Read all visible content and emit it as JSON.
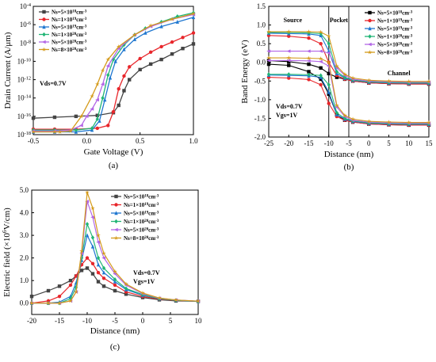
{
  "chart_data": [
    {
      "id": "a",
      "type": "line",
      "panel_label": "(a)",
      "xlabel": "Gate Voltage (V)",
      "ylabel": "Drain Current (A/μm)",
      "xlim": [
        -0.5,
        1.0
      ],
      "ylim_log10": [
        -18,
        -4
      ],
      "y_scale": "log",
      "xticks": [
        "-0.5",
        "0.0",
        "0.5",
        "1.0"
      ],
      "yticks": [
        {
          "mant": "10",
          "exp": "-4",
          "v": -4
        },
        {
          "mant": "10",
          "exp": "-6",
          "v": -6
        },
        {
          "mant": "10",
          "exp": "-8",
          "v": -8
        },
        {
          "mant": "10",
          "exp": "-10",
          "v": -10
        },
        {
          "mant": "10",
          "exp": "-12",
          "v": -12
        },
        {
          "mant": "10",
          "exp": "-14",
          "v": -14
        },
        {
          "mant": "10",
          "exp": "-16",
          "v": -16
        },
        {
          "mant": "10",
          "exp": "-18",
          "v": -18
        }
      ],
      "annotation": "Vds=0.7V",
      "legend_position": "top-left",
      "series": [
        {
          "name": "Ns=5×10¹⁸cm⁻³",
          "color": "#444444",
          "marker": "square",
          "x": [
            -0.5,
            -0.3,
            -0.1,
            0.1,
            0.25,
            0.3,
            0.35,
            0.4,
            0.5,
            0.6,
            0.7,
            0.8,
            0.9,
            1.0
          ],
          "log10y": [
            -16.2,
            -16.1,
            -16.0,
            -15.9,
            -15.6,
            -14.8,
            -13.2,
            -12.0,
            -10.9,
            -10.3,
            -9.8,
            -9.2,
            -8.6,
            -8.1
          ]
        },
        {
          "name": "Ns=1×10¹⁹cm⁻³",
          "color": "#e8262b",
          "marker": "circle",
          "x": [
            -0.5,
            -0.3,
            -0.1,
            0.1,
            0.2,
            0.25,
            0.3,
            0.35,
            0.4,
            0.5,
            0.6,
            0.7,
            0.8,
            0.9,
            1.0
          ],
          "log10y": [
            -17.4,
            -17.4,
            -17.4,
            -17.3,
            -17.0,
            -15.5,
            -13.0,
            -11.6,
            -10.6,
            -9.7,
            -9.0,
            -8.4,
            -7.9,
            -7.4,
            -6.9
          ]
        },
        {
          "name": "Ns=5×10¹⁹cm⁻³",
          "color": "#1f77d0",
          "marker": "triangle",
          "x": [
            -0.5,
            -0.3,
            -0.1,
            0.05,
            0.12,
            0.17,
            0.22,
            0.27,
            0.35,
            0.45,
            0.55,
            0.7,
            0.85,
            1.0
          ],
          "log10y": [
            -17.7,
            -17.7,
            -17.7,
            -17.5,
            -16.5,
            -14.2,
            -11.8,
            -10.0,
            -8.7,
            -7.6,
            -6.9,
            -6.2,
            -5.7,
            -5.2
          ]
        },
        {
          "name": "Ns=1×10²⁰cm⁻³",
          "color": "#21b575",
          "marker": "diamond",
          "x": [
            -0.5,
            -0.3,
            -0.1,
            0.05,
            0.1,
            0.15,
            0.2,
            0.25,
            0.35,
            0.45,
            0.55,
            0.7,
            0.85,
            1.0
          ],
          "log10y": [
            -17.5,
            -17.5,
            -17.5,
            -17.3,
            -16.3,
            -14.0,
            -11.5,
            -9.8,
            -8.2,
            -7.1,
            -6.4,
            -5.7,
            -5.1,
            -4.7
          ]
        },
        {
          "name": "Ns=5×10²⁰cm⁻³",
          "color": "#b266e6",
          "marker": "triangle-left",
          "x": [
            -0.5,
            -0.3,
            -0.15,
            -0.05,
            0.0,
            0.05,
            0.1,
            0.15,
            0.2,
            0.3,
            0.45,
            0.6,
            0.8,
            1.0
          ],
          "log10y": [
            -17.6,
            -17.6,
            -17.5,
            -17.0,
            -16.0,
            -15.2,
            -14.2,
            -12.5,
            -10.5,
            -8.6,
            -7.1,
            -6.2,
            -5.4,
            -4.9
          ]
        },
        {
          "name": "Ns=8×10²⁰cm⁻³",
          "color": "#d49a1a",
          "marker": "star",
          "x": [
            -0.5,
            -0.3,
            -0.25,
            -0.15,
            -0.05,
            0.05,
            0.1,
            0.15,
            0.2,
            0.3,
            0.45,
            0.6,
            0.8,
            1.0
          ],
          "log10y": [
            -17.7,
            -17.7,
            -17.7,
            -17.6,
            -16.0,
            -13.8,
            -12.5,
            -11.0,
            -9.8,
            -8.4,
            -7.1,
            -6.1,
            -5.4,
            -4.8
          ]
        }
      ]
    },
    {
      "id": "b",
      "type": "line",
      "panel_label": "(b)",
      "xlabel": "Distance (nm)",
      "ylabel": "Band Energy (eV)",
      "xlim": [
        -25,
        15
      ],
      "ylim": [
        -2.0,
        1.5
      ],
      "xticks": [
        "-25",
        "-20",
        "-15",
        "-10",
        "-5",
        "0",
        "5",
        "10",
        "15"
      ],
      "yticks": [
        "1.5",
        "1.0",
        "0.5",
        "0.0",
        "-0.5",
        "-1.0",
        "-1.5",
        "-2.0"
      ],
      "region_labels": [
        "Source",
        "Pocket",
        "Channel"
      ],
      "region_boundaries_x": [
        -10,
        -5
      ],
      "annotations": [
        "Vds=0.7V",
        "Vgs=1V"
      ],
      "legend_position": "top-right",
      "series": [
        {
          "name": "Ns=5×10¹⁸cm⁻³",
          "color": "#000000",
          "marker": "square",
          "cb": {
            "x": [
              -25,
              -20,
              -15,
              -12,
              -10,
              -8,
              -6,
              -4,
              0,
              5,
              10,
              15
            ],
            "y": [
              0.05,
              0.02,
              -0.05,
              -0.15,
              -0.3,
              -0.4,
              -0.45,
              -0.5,
              -0.55,
              -0.57,
              -0.58,
              -0.58
            ]
          },
          "vb": {
            "x": [
              -25,
              -20,
              -15,
              -12,
              -10,
              -8,
              -6,
              -4,
              0,
              5,
              10,
              15
            ],
            "y": [
              -0.05,
              -0.08,
              -0.25,
              -0.45,
              -0.85,
              -1.4,
              -1.55,
              -1.6,
              -1.65,
              -1.67,
              -1.68,
              -1.68
            ]
          }
        },
        {
          "name": "Ns=1×10¹⁹cm⁻³",
          "color": "#e8262b",
          "marker": "circle",
          "cb": {
            "x": [
              -25,
              -20,
              -15,
              -12,
              -10,
              -8,
              -6,
              -4,
              0,
              5,
              10,
              15
            ],
            "y": [
              0.72,
              0.7,
              0.65,
              0.5,
              0.0,
              -0.35,
              -0.45,
              -0.5,
              -0.55,
              -0.57,
              -0.58,
              -0.58
            ]
          },
          "vb": {
            "x": [
              -25,
              -20,
              -15,
              -12,
              -10,
              -8,
              -6,
              -4,
              0,
              5,
              10,
              15
            ],
            "y": [
              -0.4,
              -0.42,
              -0.46,
              -0.6,
              -1.1,
              -1.45,
              -1.55,
              -1.6,
              -1.65,
              -1.67,
              -1.68,
              -1.68
            ]
          }
        },
        {
          "name": "Ns=5×10¹⁹cm⁻³",
          "color": "#1f77d0",
          "marker": "triangle",
          "cb": {
            "x": [
              -25,
              -20,
              -15,
              -12,
              -10,
              -8,
              -6,
              -4,
              0,
              5,
              10,
              15
            ],
            "y": [
              0.78,
              0.77,
              0.76,
              0.72,
              0.3,
              -0.3,
              -0.42,
              -0.48,
              -0.53,
              -0.55,
              -0.56,
              -0.56
            ]
          },
          "vb": {
            "x": [
              -25,
              -20,
              -15,
              -12,
              -10,
              -8,
              -6,
              -4,
              0,
              5,
              10,
              15
            ],
            "y": [
              -0.34,
              -0.35,
              -0.36,
              -0.4,
              -0.8,
              -1.4,
              -1.52,
              -1.58,
              -1.63,
              -1.65,
              -1.66,
              -1.66
            ]
          }
        },
        {
          "name": "Ns=1×10²⁰cm⁻³",
          "color": "#21b575",
          "marker": "diamond",
          "cb": {
            "x": [
              -25,
              -20,
              -15,
              -12,
              -10,
              -8,
              -6,
              -4,
              0,
              5,
              10,
              15
            ],
            "y": [
              0.8,
              0.8,
              0.79,
              0.77,
              0.5,
              -0.25,
              -0.4,
              -0.47,
              -0.52,
              -0.54,
              -0.55,
              -0.55
            ]
          },
          "vb": {
            "x": [
              -25,
              -20,
              -15,
              -12,
              -10,
              -8,
              -6,
              -4,
              0,
              5,
              10,
              15
            ],
            "y": [
              -0.32,
              -0.32,
              -0.33,
              -0.35,
              -0.6,
              -1.35,
              -1.5,
              -1.57,
              -1.62,
              -1.64,
              -1.65,
              -1.65
            ]
          }
        },
        {
          "name": "Ns=5×10²⁰cm⁻³",
          "color": "#b266e6",
          "marker": "triangle-left",
          "cb": {
            "x": [
              -25,
              -20,
              -15,
              -12,
              -10,
              -8,
              -6,
              -4,
              0,
              5,
              10,
              15
            ],
            "y": [
              0.3,
              0.3,
              0.3,
              0.3,
              0.25,
              -0.15,
              -0.35,
              -0.45,
              -0.5,
              -0.52,
              -0.53,
              -0.53
            ]
          },
          "vb": {
            "x": [
              -25,
              -20,
              -15,
              -12,
              -10,
              -8,
              -6,
              -4,
              0,
              5,
              10,
              15
            ],
            "y": [
              0.05,
              0.05,
              0.04,
              0.02,
              -0.1,
              -1.2,
              -1.45,
              -1.55,
              -1.6,
              -1.62,
              -1.63,
              -1.63
            ]
          }
        },
        {
          "name": "Ns=8×10²⁰cm⁻³",
          "color": "#d49a1a",
          "marker": "star",
          "cb": {
            "x": [
              -25,
              -20,
              -15,
              -12,
              -10,
              -8,
              -6,
              -4,
              0,
              5,
              10,
              15
            ],
            "y": [
              0.82,
              0.82,
              0.82,
              0.81,
              0.7,
              -0.1,
              -0.32,
              -0.42,
              -0.48,
              -0.5,
              -0.51,
              -0.51
            ]
          },
          "vb": {
            "x": [
              -25,
              -20,
              -15,
              -12,
              -10,
              -8,
              -6,
              -4,
              0,
              5,
              10,
              15
            ],
            "y": [
              0.12,
              0.12,
              0.11,
              0.1,
              0.0,
              -1.15,
              -1.42,
              -1.52,
              -1.58,
              -1.6,
              -1.61,
              -1.61
            ]
          }
        }
      ]
    },
    {
      "id": "c",
      "type": "line",
      "panel_label": "(c)",
      "xlabel": "Distance (nm)",
      "ylabel_parts": [
        "Electric field (×10",
        "6",
        "V/cm)"
      ],
      "xlim": [
        -20,
        10
      ],
      "ylim": [
        -0.5,
        5.0
      ],
      "xticks": [
        "-20",
        "-15",
        "-10",
        "-5",
        "0",
        "5",
        "10"
      ],
      "yticks": [
        "5.0",
        "4.0",
        "3.0",
        "2.0",
        "1.0",
        "0.0"
      ],
      "annotations": [
        "Vds=0.7V",
        "Vgs=1V"
      ],
      "legend_position": "top-right",
      "series": [
        {
          "name": "Ns=5×10¹⁸cm⁻³",
          "color": "#444444",
          "marker": "square",
          "x": [
            -20,
            -17,
            -15,
            -13,
            -12,
            -11,
            -10,
            -9,
            -8,
            -7,
            -5,
            -3,
            0,
            3,
            6,
            10
          ],
          "y": [
            0.3,
            0.55,
            0.75,
            1.0,
            1.2,
            1.45,
            1.55,
            1.3,
            0.95,
            0.75,
            0.55,
            0.4,
            0.25,
            0.15,
            0.1,
            0.08
          ]
        },
        {
          "name": "Ns=1×10¹⁹cm⁻³",
          "color": "#e8262b",
          "marker": "circle",
          "x": [
            -20,
            -17,
            -15,
            -13,
            -12,
            -11,
            -10,
            -9,
            -8,
            -7,
            -5,
            -3,
            0,
            3,
            6,
            10
          ],
          "y": [
            0.0,
            0.1,
            0.3,
            0.8,
            1.2,
            1.7,
            2.0,
            1.75,
            1.35,
            1.1,
            0.8,
            0.5,
            0.3,
            0.18,
            0.12,
            0.08
          ]
        },
        {
          "name": "Ns=5×10¹⁹cm⁻³",
          "color": "#1f77d0",
          "marker": "triangle",
          "x": [
            -20,
            -17,
            -15,
            -13,
            -12,
            -11,
            -10,
            -9,
            -8,
            -7,
            -5,
            -3,
            0,
            3,
            6,
            10
          ],
          "y": [
            0.0,
            0.0,
            0.05,
            0.3,
            0.9,
            1.9,
            3.0,
            2.5,
            1.7,
            1.35,
            0.95,
            0.6,
            0.35,
            0.2,
            0.13,
            0.08
          ]
        },
        {
          "name": "Ns=1×10²⁰cm⁻³",
          "color": "#21b575",
          "marker": "diamond",
          "x": [
            -20,
            -17,
            -15,
            -13,
            -12,
            -11,
            -10,
            -9,
            -8,
            -7,
            -5,
            -3,
            0,
            3,
            6,
            10
          ],
          "y": [
            0.0,
            0.0,
            0.0,
            0.2,
            0.7,
            2.0,
            3.5,
            2.9,
            2.0,
            1.55,
            1.05,
            0.65,
            0.38,
            0.2,
            0.13,
            0.08
          ]
        },
        {
          "name": "Ns=5×10²⁰cm⁻³",
          "color": "#b266e6",
          "marker": "triangle-left",
          "x": [
            -20,
            -17,
            -15,
            -13,
            -12,
            -11,
            -10,
            -9,
            -8,
            -7,
            -5,
            -3,
            0,
            3,
            6,
            10
          ],
          "y": [
            0.0,
            0.0,
            0.0,
            0.1,
            0.5,
            2.2,
            4.5,
            3.8,
            2.7,
            2.0,
            1.3,
            0.8,
            0.42,
            0.22,
            0.14,
            0.09
          ]
        },
        {
          "name": "Ns=8×10²⁰cm⁻³",
          "color": "#d49a1a",
          "marker": "star",
          "x": [
            -20,
            -17,
            -15,
            -13,
            -12,
            -11,
            -10,
            -9,
            -8,
            -7,
            -5,
            -3,
            0,
            3,
            6,
            10
          ],
          "y": [
            0.0,
            0.0,
            0.0,
            0.1,
            0.5,
            2.3,
            4.9,
            4.2,
            3.0,
            2.2,
            1.4,
            0.85,
            0.45,
            0.23,
            0.14,
            0.09
          ]
        }
      ]
    }
  ]
}
